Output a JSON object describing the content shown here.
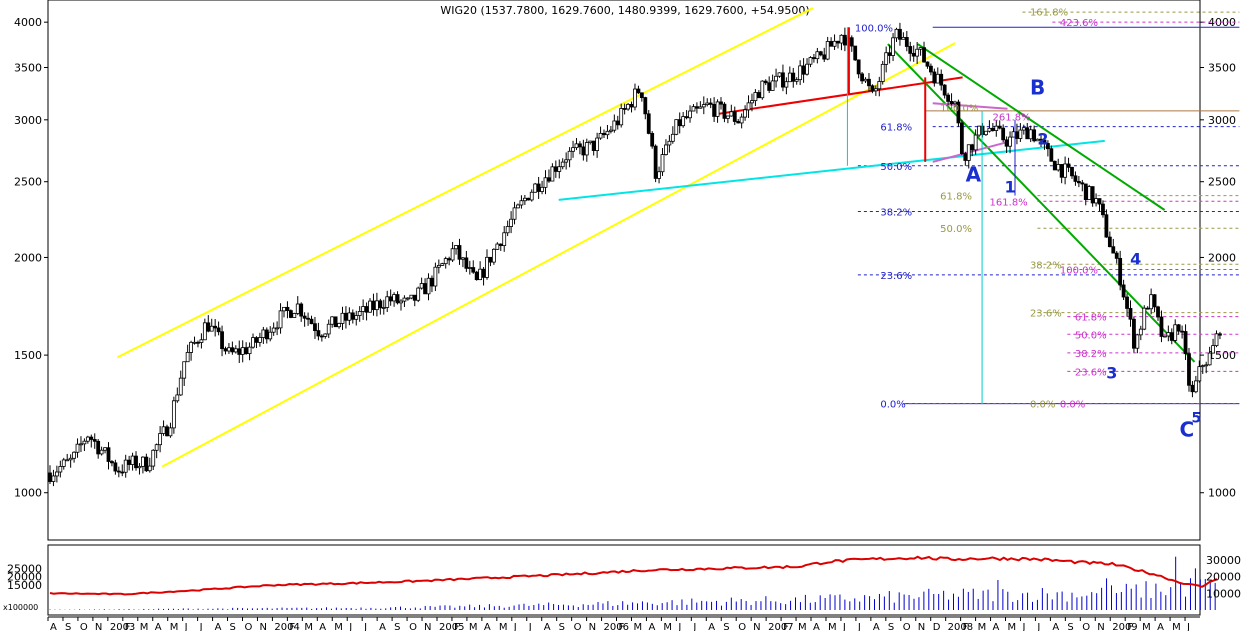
{
  "chart_data": {
    "type": "candlestick",
    "title": "WIG20 (1537.7800, 1629.7600, 1480.9399, 1629.7600, +54.9500)",
    "y_scale": "log",
    "ylim": [
      870,
      4270
    ],
    "y_ticks": [
      1000,
      1500,
      2000,
      2500,
      3000,
      3500,
      4000
    ],
    "volume_panel": {
      "ylabel": "x100000",
      "left_ticks": [
        "25000",
        "20000",
        "15000"
      ],
      "right_ticks": [
        "30000",
        "20000",
        "10000"
      ],
      "line_color": "#dd0000",
      "bar_color": "#0000cc"
    },
    "x_axis": {
      "labels": [
        "A",
        "S",
        "O",
        "N",
        "2003",
        "F",
        "M",
        "A",
        "M",
        "J",
        "J",
        "A",
        "S",
        "O",
        "N",
        "2004",
        "F",
        "M",
        "A",
        "M",
        "J",
        "J",
        "A",
        "S",
        "O",
        "N",
        "2005",
        "F",
        "M",
        "A",
        "M",
        "J",
        "J",
        "A",
        "S",
        "O",
        "N",
        "2006",
        "F",
        "M",
        "A",
        "M",
        "J",
        "J",
        "A",
        "S",
        "O",
        "N",
        "2007",
        "F",
        "M",
        "A",
        "M",
        "J",
        "J",
        "A",
        "S",
        "O",
        "N",
        "D",
        "2008",
        "F",
        "M",
        "A",
        "M",
        "J",
        "J",
        "A",
        "S",
        "O",
        "N",
        "2009",
        "F",
        "M",
        "A",
        "M",
        "J"
      ]
    },
    "price_path": [
      [
        0,
        1060
      ],
      [
        1.5,
        1100
      ],
      [
        2.5,
        1190
      ],
      [
        3.5,
        1130
      ],
      [
        4.5,
        1070
      ],
      [
        5.5,
        1090
      ],
      [
        6.5,
        1090
      ],
      [
        8,
        1230
      ],
      [
        9,
        1480
      ],
      [
        10.5,
        1650
      ],
      [
        12,
        1500
      ],
      [
        13.5,
        1540
      ],
      [
        15,
        1650
      ],
      [
        16.5,
        1740
      ],
      [
        18,
        1610
      ],
      [
        19.5,
        1660
      ],
      [
        21,
        1700
      ],
      [
        22.5,
        1770
      ],
      [
        24,
        1740
      ],
      [
        25.5,
        1870
      ],
      [
        27,
        2050
      ],
      [
        28.5,
        1850
      ],
      [
        30,
        2100
      ],
      [
        32,
        2420
      ],
      [
        34.5,
        2700
      ],
      [
        36.5,
        2790
      ],
      [
        38,
        3000
      ],
      [
        39.5,
        3310
      ],
      [
        40.5,
        2560
      ],
      [
        42,
        2970
      ],
      [
        44,
        3130
      ],
      [
        46,
        3000
      ],
      [
        47.5,
        3300
      ],
      [
        49.5,
        3410
      ],
      [
        51.5,
        3600
      ],
      [
        53,
        3880
      ],
      [
        55,
        3200
      ],
      [
        56.5,
        3850
      ],
      [
        58,
        3680
      ],
      [
        59,
        3450
      ],
      [
        60.5,
        3150
      ],
      [
        61,
        2700
      ],
      [
        62.5,
        2950
      ],
      [
        64,
        2820
      ],
      [
        65.5,
        2920
      ],
      [
        67,
        2660
      ],
      [
        68.5,
        2510
      ],
      [
        70,
        2350
      ],
      [
        71.5,
        1900
      ],
      [
        72.5,
        1550
      ],
      [
        73.5,
        1780
      ],
      [
        74.5,
        1550
      ],
      [
        75.5,
        1650
      ],
      [
        76.3,
        1320
      ],
      [
        77,
        1460
      ],
      [
        77.6,
        1500
      ],
      [
        78.2,
        1629.76
      ]
    ],
    "volume_line": [
      [
        0,
        10000
      ],
      [
        5,
        9500
      ],
      [
        10,
        12000
      ],
      [
        15,
        15000
      ],
      [
        20,
        16000
      ],
      [
        25,
        17500
      ],
      [
        30,
        19500
      ],
      [
        35,
        21500
      ],
      [
        40,
        24000
      ],
      [
        45,
        25000
      ],
      [
        50,
        26000
      ],
      [
        52,
        29000
      ],
      [
        55,
        30500
      ],
      [
        58,
        31500
      ],
      [
        60,
        30500
      ],
      [
        63,
        31000
      ],
      [
        66,
        30500
      ],
      [
        69,
        28500
      ],
      [
        71,
        27500
      ],
      [
        72,
        25500
      ],
      [
        74,
        21000
      ],
      [
        75.5,
        16500
      ],
      [
        77,
        14000
      ],
      [
        78.2,
        20000
      ]
    ],
    "volume_bars_base": [
      [
        0,
        200
      ],
      [
        10,
        800
      ],
      [
        20,
        1200
      ],
      [
        30,
        2500
      ],
      [
        40,
        4500
      ],
      [
        50,
        6000
      ],
      [
        60,
        9000
      ],
      [
        70,
        10000
      ],
      [
        78,
        15000
      ]
    ],
    "volume_spikes": [
      {
        "x": 63.5,
        "v": 18000
      },
      {
        "x": 70.5,
        "v": 19000
      },
      {
        "x": 75.3,
        "v": 32000
      },
      {
        "x": 76.5,
        "v": 25000
      },
      {
        "x": 78.2,
        "v": 30000
      }
    ],
    "trend_lines": [
      {
        "color": "#ffff00",
        "from": [
          4.5,
          1490
        ],
        "to": [
          51,
          4170
        ]
      },
      {
        "color": "#ffff00",
        "from": [
          7.5,
          1080
        ],
        "to": [
          60.5,
          3760
        ]
      },
      {
        "color": "#00e5e5",
        "from": [
          34,
          2370
        ],
        "to": [
          70.5,
          2820
        ]
      },
      {
        "color": "#ee0000",
        "from": [
          44.5,
          3050
        ],
        "to": [
          61,
          3400
        ]
      },
      {
        "color": "#00aa00",
        "from": [
          56,
          3750
        ],
        "to": [
          76.5,
          1470
        ]
      },
      {
        "color": "#00aa00",
        "from": [
          58,
          3750
        ],
        "to": [
          74.5,
          2300
        ]
      },
      {
        "color": "#cc66cc",
        "from": [
          59,
          3150
        ],
        "to": [
          64,
          3100
        ]
      },
      {
        "color": "#cc66cc",
        "from": [
          59,
          2650
        ],
        "to": [
          64,
          2810
        ]
      }
    ],
    "h_lines": [
      {
        "y": 3940,
        "x1": 59,
        "x2": 79.5,
        "color": "#2222cc",
        "dash": ""
      },
      {
        "y": 3080,
        "x1": 58.5,
        "x2": 79.5,
        "color": "#aa7744",
        "dash": ""
      },
      {
        "y": 4120,
        "x1": 65,
        "x2": 79.5,
        "color": "#999944",
        "dash": "3,3"
      },
      {
        "y": 4000,
        "x1": 67,
        "x2": 79.5,
        "color": "#cc33cc",
        "dash": "3,3"
      },
      {
        "y": 2940,
        "x1": 59,
        "x2": 79.5,
        "color": "#2222cc",
        "dash": "3,3"
      },
      {
        "y": 2620,
        "x1": 54,
        "x2": 79.5,
        "color": "#2222cc",
        "dash": "3,3"
      },
      {
        "y": 2290,
        "x1": 54,
        "x2": 79.5,
        "color": "#2222cc",
        "dash": "3,3"
      },
      {
        "y": 1900,
        "x1": 54,
        "x2": 79.5,
        "color": "#2222cc",
        "dash": "3,3"
      },
      {
        "y": 1300,
        "x1": 57,
        "x2": 79.5,
        "color": "#2222cc",
        "dash": ""
      },
      {
        "y": 1300,
        "x1": 57,
        "x2": 79.5,
        "color": "#cc33cc",
        "dash": "3,3"
      },
      {
        "y": 2400,
        "x1": 66,
        "x2": 79.5,
        "color": "#999944",
        "dash": "3,3"
      },
      {
        "y": 2180,
        "x1": 66,
        "x2": 79.5,
        "color": "#999944",
        "dash": "3,3"
      },
      {
        "y": 1960,
        "x1": 66,
        "x2": 79.5,
        "color": "#999944",
        "dash": "3,3"
      },
      {
        "y": 1700,
        "x1": 66,
        "x2": 79.5,
        "color": "#999944",
        "dash": "3,3"
      },
      {
        "y": 2360,
        "x1": 66,
        "x2": 79.5,
        "color": "#cc33cc",
        "dash": "3,3"
      },
      {
        "y": 1930,
        "x1": 68,
        "x2": 79.5,
        "color": "#cc33cc",
        "dash": "3,3"
      },
      {
        "y": 1680,
        "x1": 68,
        "x2": 79.5,
        "color": "#cc33cc",
        "dash": "3,3"
      },
      {
        "y": 1595,
        "x1": 68,
        "x2": 79.5,
        "color": "#cc33cc",
        "dash": "3,3"
      },
      {
        "y": 1510,
        "x1": 68,
        "x2": 79.5,
        "color": "#cc33cc",
        "dash": "3,3"
      },
      {
        "y": 1430,
        "x1": 68,
        "x2": 79.5,
        "color": "#cc33cc",
        "dash": "3,3"
      }
    ],
    "v_lines": [
      {
        "x": 53.3,
        "y1": 3940,
        "y2": 2620,
        "color": "#00cccc"
      },
      {
        "x": 62.3,
        "y1": 3080,
        "y2": 1300,
        "color": "#00cccc"
      },
      {
        "x": 64.5,
        "y1": 3000,
        "y2": 2400,
        "color": "#2222cc"
      },
      {
        "x": 53.4,
        "y1": 3940,
        "y2": 3230,
        "color": "#ee0000"
      },
      {
        "x": 58.5,
        "y1": 3400,
        "y2": 2650,
        "color": "#ee0000"
      }
    ],
    "fib_labels": [
      {
        "text": "161.8%",
        "x": 65.5,
        "y": 4130,
        "color": "#999944"
      },
      {
        "text": "423.6%",
        "x": 67.5,
        "y": 4000,
        "color": "#cc33cc"
      },
      {
        "text": "100.0%",
        "x": 53.8,
        "y": 3940,
        "color": "#2222cc"
      },
      {
        "text": "100.0%",
        "x": 59.5,
        "y": 3110,
        "color": "#999944"
      },
      {
        "text": "261.8%",
        "x": 63,
        "y": 3030,
        "color": "#cc33cc"
      },
      {
        "text": "61.8%",
        "x": 55.5,
        "y": 2940,
        "color": "#2222cc"
      },
      {
        "text": "50.0%",
        "x": 55.5,
        "y": 2620,
        "color": "#2222cc"
      },
      {
        "text": "61.8%",
        "x": 59.5,
        "y": 2400,
        "color": "#999944"
      },
      {
        "text": "161.8%",
        "x": 62.8,
        "y": 2360,
        "color": "#cc33cc"
      },
      {
        "text": "38.2%",
        "x": 55.5,
        "y": 2290,
        "color": "#2222cc"
      },
      {
        "text": "50.0%",
        "x": 59.5,
        "y": 2180,
        "color": "#999944"
      },
      {
        "text": "38.2%",
        "x": 65.5,
        "y": 1960,
        "color": "#999944"
      },
      {
        "text": "100.0%",
        "x": 67.5,
        "y": 1930,
        "color": "#cc33cc"
      },
      {
        "text": "23.6%",
        "x": 55.5,
        "y": 1900,
        "color": "#2222cc"
      },
      {
        "text": "23.6%",
        "x": 65.5,
        "y": 1700,
        "color": "#999944"
      },
      {
        "text": "61.8%",
        "x": 68.5,
        "y": 1680,
        "color": "#cc33cc"
      },
      {
        "text": "50.0%",
        "x": 68.5,
        "y": 1595,
        "color": "#cc33cc"
      },
      {
        "text": "38.2%",
        "x": 68.5,
        "y": 1510,
        "color": "#cc33cc"
      },
      {
        "text": "23.6%",
        "x": 68.5,
        "y": 1430,
        "color": "#cc33cc"
      },
      {
        "text": "0.0%",
        "x": 55.5,
        "y": 1300,
        "color": "#2222cc"
      },
      {
        "text": "0.0%",
        "x": 65.5,
        "y": 1300,
        "color": "#999944"
      },
      {
        "text": "0.0%",
        "x": 67.5,
        "y": 1300,
        "color": "#cc33cc"
      }
    ],
    "wave_labels": [
      {
        "text": "A",
        "x": 61.2,
        "y": 2500,
        "size": 20
      },
      {
        "text": "B",
        "x": 65.5,
        "y": 3230,
        "size": 20
      },
      {
        "text": "1",
        "x": 63.8,
        "y": 2420,
        "size": 16
      },
      {
        "text": "2",
        "x": 66,
        "y": 2790,
        "size": 16
      },
      {
        "text": "3",
        "x": 70.6,
        "y": 1400,
        "size": 16
      },
      {
        "text": "4",
        "x": 72.2,
        "y": 1960,
        "size": 16
      },
      {
        "text": "C",
        "x": 75.5,
        "y": 1180,
        "size": 20
      },
      {
        "text": "5",
        "x": 76.3,
        "y": 1230,
        "size": 14
      }
    ]
  }
}
